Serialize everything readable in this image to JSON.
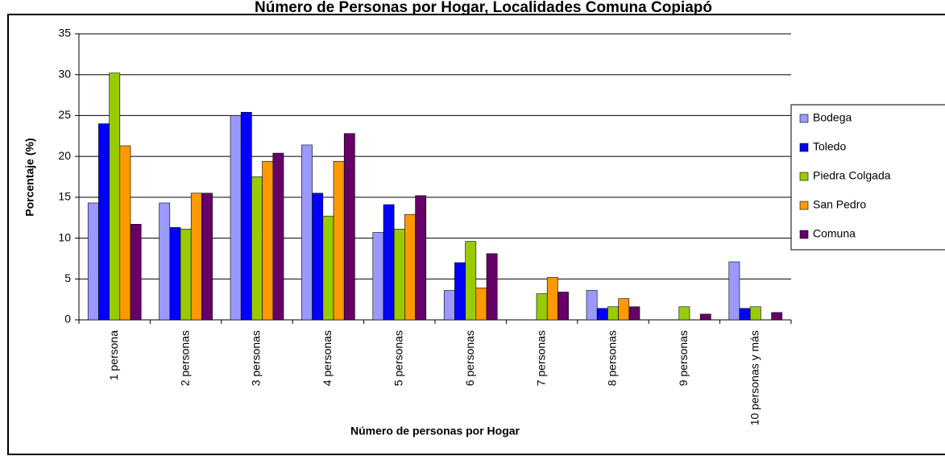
{
  "chart_data": {
    "type": "bar",
    "title": "Número de Personas por Hogar, Localidades Comuna Copiapó",
    "x_label": "Número de personas por Hogar",
    "y_label": "Porcentaje (%)",
    "categories": [
      "1 persona",
      "2 personas",
      "3 personas",
      "4 personas",
      "5 personas",
      "6 personas",
      "7 personas",
      "8 personas",
      "9 personas",
      "10 personas y más"
    ],
    "series": [
      {
        "name": "Bodega",
        "color": "#9999ff",
        "values": [
          14.3,
          14.3,
          25,
          21.4,
          10.7,
          3.6,
          0,
          3.6,
          0,
          7.1
        ]
      },
      {
        "name": "Toledo",
        "color": "#0000ff",
        "values": [
          24,
          11.3,
          25.4,
          15.5,
          14.1,
          7.0,
          0,
          1.4,
          0,
          1.4
        ]
      },
      {
        "name": "Piedra Colgada",
        "color": "#99cc00",
        "values": [
          30.2,
          11.1,
          17.5,
          12.7,
          11.1,
          9.6,
          3.2,
          1.6,
          1.6,
          1.6
        ]
      },
      {
        "name": "San Pedro",
        "color": "#ff9900",
        "values": [
          21.3,
          15.5,
          19.4,
          19.4,
          12.9,
          3.9,
          5.2,
          2.6,
          0,
          0
        ]
      },
      {
        "name": "Comuna",
        "color": "#660066",
        "values": [
          11.7,
          15.5,
          20.4,
          22.8,
          15.2,
          8.1,
          3.4,
          1.6,
          0.7,
          0.9
        ]
      }
    ],
    "ylim": [
      0,
      35
    ],
    "yticks": [
      0,
      5,
      10,
      15,
      20,
      25,
      30,
      35
    ],
    "grid": true,
    "legend": "right"
  }
}
